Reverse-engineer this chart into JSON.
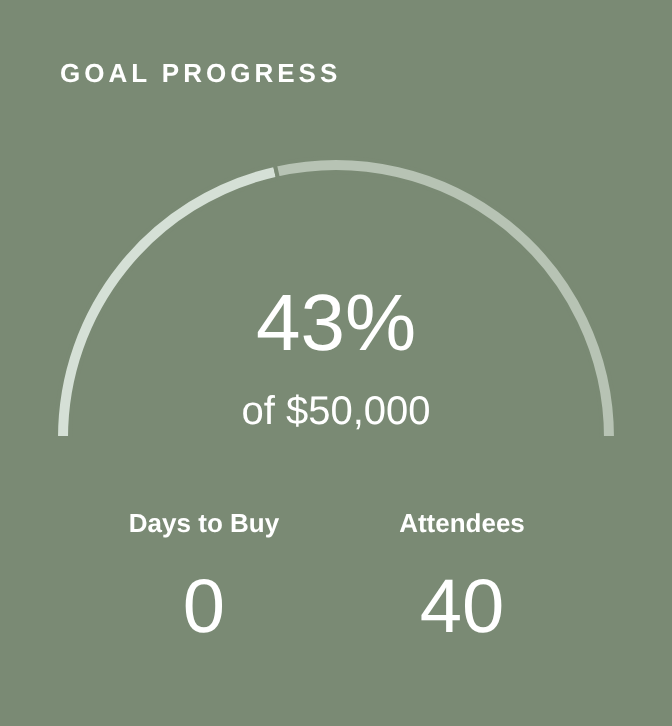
{
  "chart_data": {
    "type": "donut",
    "title": "GOAL PROGRESS",
    "categories": [
      null,
      null
    ],
    "values": [
      43,
      57
    ],
    "colors": [
      "#d5e0d6",
      "#b7c3b4"
    ],
    "value_labels": [
      "43%",
      null
    ],
    "legend": false,
    "annotations": [
      "of $50,000",
      "Days to Buy",
      "0",
      "Attendees",
      "40"
    ]
  }
}
